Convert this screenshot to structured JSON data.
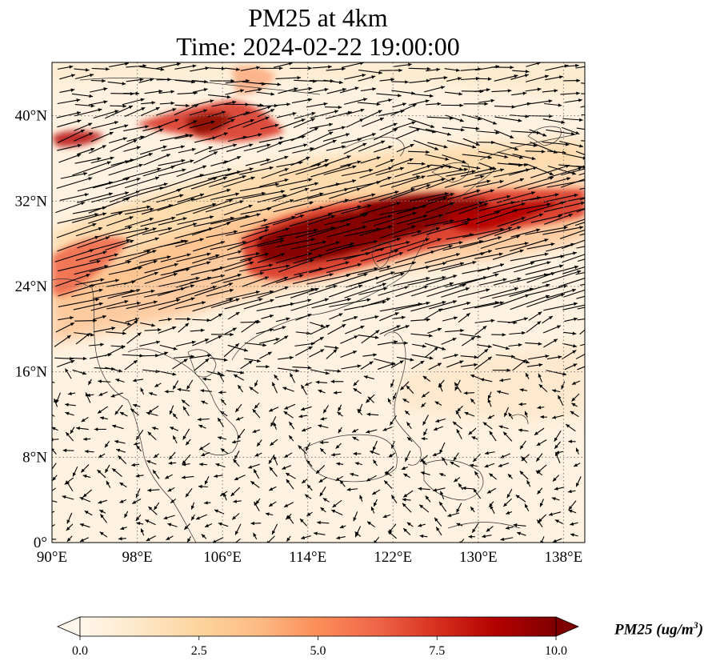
{
  "title": {
    "line1": "PM25 at 4km",
    "line2": "Time: 2024-02-22 19:00:00"
  },
  "map": {
    "lon_range": [
      90,
      140
    ],
    "lat_range": [
      0,
      45
    ],
    "lon_ticks": [
      {
        "value": 90,
        "label": "90°E"
      },
      {
        "value": 98,
        "label": "98°E"
      },
      {
        "value": 106,
        "label": "106°E"
      },
      {
        "value": 114,
        "label": "114°E"
      },
      {
        "value": 122,
        "label": "122°E"
      },
      {
        "value": 130,
        "label": "130°E"
      },
      {
        "value": 138,
        "label": "138°E"
      }
    ],
    "lat_ticks": [
      {
        "value": 0,
        "label": "0°"
      },
      {
        "value": 8,
        "label": "8°N"
      },
      {
        "value": 16,
        "label": "16°N"
      },
      {
        "value": 24,
        "label": "24°N"
      },
      {
        "value": 32,
        "label": "32°N"
      },
      {
        "value": 40,
        "label": "40°N"
      }
    ],
    "gridlines": true,
    "gridline_style": "dotted"
  },
  "colorbar": {
    "ticks": [
      "0.0",
      "2.5",
      "5.0",
      "7.5",
      "10.0"
    ],
    "range": [
      0,
      10
    ],
    "extend": "both",
    "colormap": "OrRd",
    "stops": [
      "#fff7ec",
      "#fee8c8",
      "#fdd49e",
      "#fdbb84",
      "#fc8d59",
      "#ef6548",
      "#d7301f",
      "#b30000",
      "#7f0000"
    ],
    "label_main": "PM25 (ug/m",
    "label_sup": "3",
    "label_end": ")"
  },
  "colors": {
    "frame": "#000000",
    "grid": "#7a7a7a",
    "coast": "#333333",
    "arrow": "#000000"
  }
}
